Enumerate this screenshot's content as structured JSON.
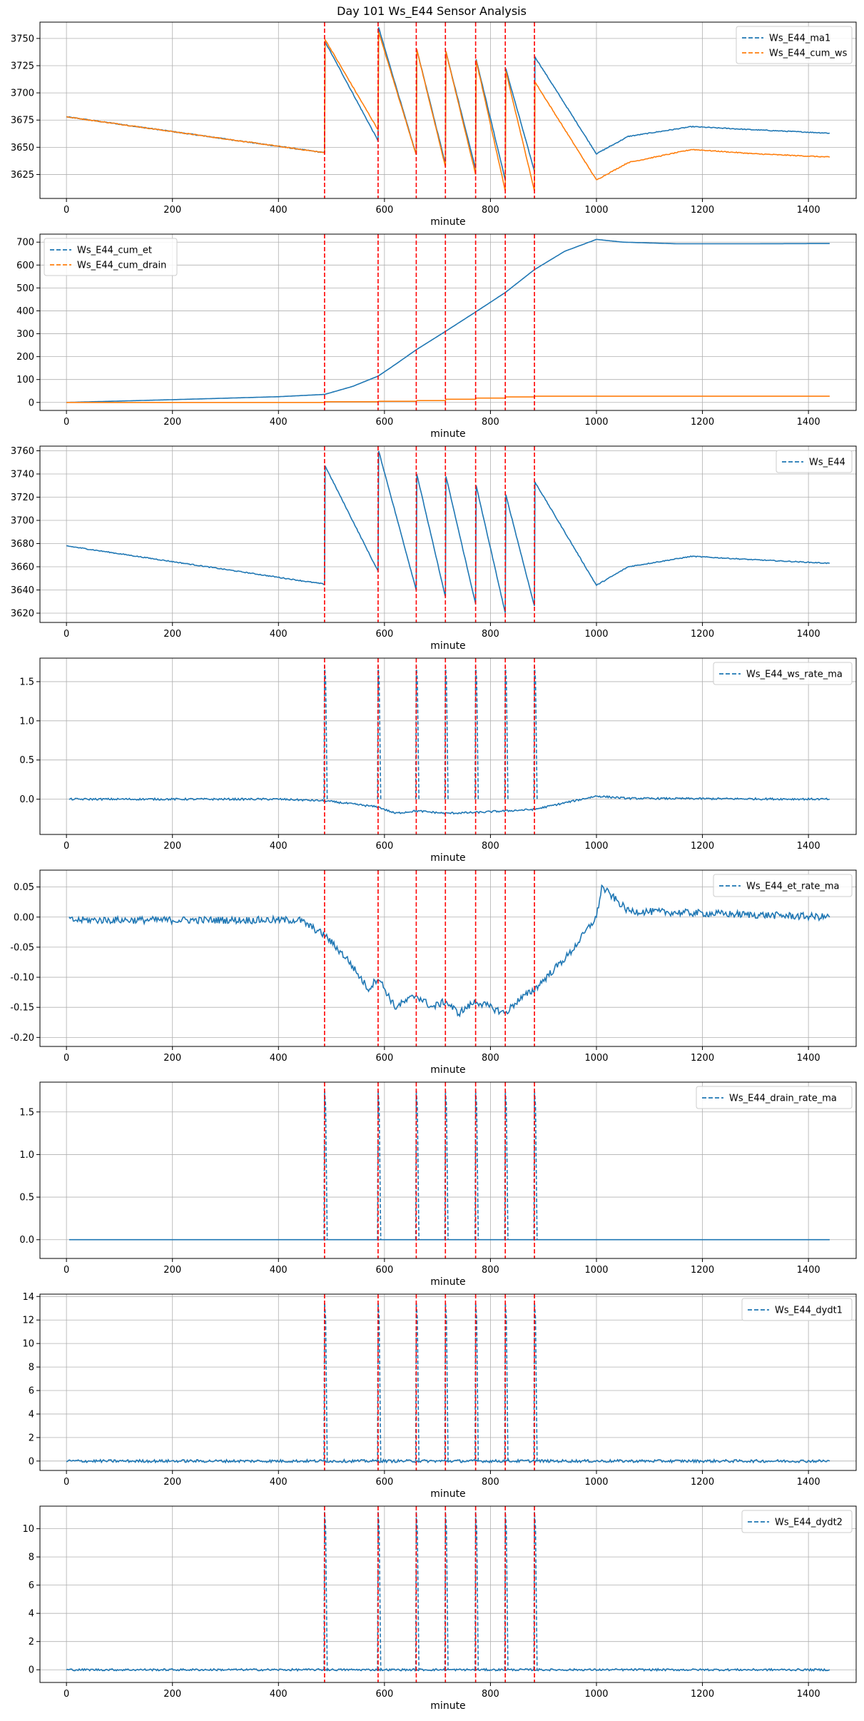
{
  "figure": {
    "title": "Day 101 Ws_E44 Sensor Analysis"
  },
  "colors": {
    "blue": "#1f77b4",
    "orange": "#ff7f0e",
    "event": "#ff0000",
    "grid": "#b0b0b0"
  },
  "chart_data": [
    {
      "type": "line",
      "xlabel": "minute",
      "xlim": [
        -50,
        1490
      ],
      "xticks": [
        0,
        200,
        400,
        600,
        800,
        1000,
        1200,
        1400
      ],
      "ylim": [
        3603,
        3765
      ],
      "yticks": [
        3625,
        3650,
        3675,
        3700,
        3725,
        3750
      ],
      "legend": "top-right",
      "events": [
        487,
        588,
        660,
        715,
        772,
        828,
        883
      ],
      "series": [
        {
          "name": "Ws_E44_ma1",
          "color": "#1f77b4",
          "style": "dashed",
          "noise": 0.4,
          "points": [
            [
              0,
              3678
            ],
            [
              487,
              3645
            ],
            [
              488,
              3747
            ],
            [
              588,
              3656
            ],
            [
              589,
              3760
            ],
            [
              660,
              3643
            ],
            [
              661,
              3740
            ],
            [
              715,
              3635
            ],
            [
              716,
              3738
            ],
            [
              772,
              3630
            ],
            [
              773,
              3731
            ],
            [
              828,
              3620
            ],
            [
              829,
              3722
            ],
            [
              883,
              3628
            ],
            [
              884,
              3733
            ],
            [
              1000,
              3644
            ],
            [
              1060,
              3660
            ],
            [
              1180,
              3669
            ],
            [
              1300,
              3666
            ],
            [
              1440,
              3663
            ]
          ]
        },
        {
          "name": "Ws_E44_cum_ws",
          "color": "#ff7f0e",
          "style": "dashed",
          "noise": 0.4,
          "points": [
            [
              0,
              3678
            ],
            [
              487,
              3645
            ],
            [
              488,
              3749
            ],
            [
              588,
              3666
            ],
            [
              589,
              3756
            ],
            [
              660,
              3643
            ],
            [
              661,
              3740
            ],
            [
              715,
              3632
            ],
            [
              716,
              3738
            ],
            [
              772,
              3625
            ],
            [
              773,
              3730
            ],
            [
              828,
              3610
            ],
            [
              829,
              3720
            ],
            [
              883,
              3610
            ],
            [
              884,
              3710
            ],
            [
              1000,
              3620
            ],
            [
              1060,
              3636
            ],
            [
              1180,
              3648
            ],
            [
              1300,
              3644
            ],
            [
              1440,
              3641
            ]
          ]
        }
      ]
    },
    {
      "type": "line",
      "xlabel": "minute",
      "xlim": [
        -50,
        1490
      ],
      "xticks": [
        0,
        200,
        400,
        600,
        800,
        1000,
        1200,
        1400
      ],
      "ylim": [
        -35,
        735
      ],
      "yticks": [
        0,
        100,
        200,
        300,
        400,
        500,
        600,
        700
      ],
      "legend": "top-left",
      "events": [
        487,
        588,
        660,
        715,
        772,
        828,
        883
      ],
      "series": [
        {
          "name": "Ws_E44_cum_et",
          "color": "#1f77b4",
          "style": "dashed",
          "noise": 0,
          "points": [
            [
              0,
              0
            ],
            [
              200,
              12
            ],
            [
              400,
              25
            ],
            [
              487,
              35
            ],
            [
              540,
              70
            ],
            [
              588,
              115
            ],
            [
              620,
              165
            ],
            [
              660,
              230
            ],
            [
              715,
              310
            ],
            [
              772,
              395
            ],
            [
              828,
              480
            ],
            [
              883,
              580
            ],
            [
              940,
              660
            ],
            [
              1000,
              712
            ],
            [
              1050,
              700
            ],
            [
              1150,
              693
            ],
            [
              1300,
              693
            ],
            [
              1440,
              694
            ]
          ]
        },
        {
          "name": "Ws_E44_cum_drain",
          "color": "#ff7f0e",
          "style": "dashed",
          "noise": 0,
          "points": [
            [
              0,
              0
            ],
            [
              487,
              0
            ],
            [
              488,
              3
            ],
            [
              588,
              3
            ],
            [
              589,
              5
            ],
            [
              660,
              5
            ],
            [
              661,
              8
            ],
            [
              715,
              8
            ],
            [
              716,
              14
            ],
            [
              772,
              14
            ],
            [
              773,
              19
            ],
            [
              828,
              19
            ],
            [
              829,
              24
            ],
            [
              883,
              24
            ],
            [
              884,
              27
            ],
            [
              1440,
              27
            ]
          ]
        }
      ]
    },
    {
      "type": "line",
      "xlabel": "minute",
      "xlim": [
        -50,
        1490
      ],
      "xticks": [
        0,
        200,
        400,
        600,
        800,
        1000,
        1200,
        1400
      ],
      "ylim": [
        3612,
        3764
      ],
      "yticks": [
        3620,
        3640,
        3660,
        3680,
        3700,
        3720,
        3740,
        3760
      ],
      "legend": "top-right",
      "events": [
        487,
        588,
        660,
        715,
        772,
        828,
        883
      ],
      "series": [
        {
          "name": "Ws_E44",
          "color": "#1f77b4",
          "style": "dashed",
          "noise": 0.4,
          "points": [
            [
              0,
              3678
            ],
            [
              487,
              3645
            ],
            [
              488,
              3747
            ],
            [
              588,
              3656
            ],
            [
              589,
              3760
            ],
            [
              660,
              3640
            ],
            [
              661,
              3740
            ],
            [
              715,
              3634
            ],
            [
              716,
              3738
            ],
            [
              772,
              3628
            ],
            [
              773,
              3730
            ],
            [
              828,
              3620
            ],
            [
              829,
              3722
            ],
            [
              883,
              3626
            ],
            [
              884,
              3733
            ],
            [
              1000,
              3644
            ],
            [
              1060,
              3660
            ],
            [
              1180,
              3669
            ],
            [
              1300,
              3666
            ],
            [
              1440,
              3663
            ]
          ]
        }
      ]
    },
    {
      "type": "line",
      "xlabel": "minute",
      "xlim": [
        -50,
        1490
      ],
      "xticks": [
        0,
        200,
        400,
        600,
        800,
        1000,
        1200,
        1400
      ],
      "ylim": [
        -0.45,
        1.8
      ],
      "yticks": [
        0.0,
        0.5,
        1.0,
        1.5
      ],
      "legend": "top-right",
      "events": [
        487,
        588,
        660,
        715,
        772,
        828,
        883
      ],
      "series": [
        {
          "name": "Ws_E44_ws_rate_ma",
          "color": "#1f77b4",
          "style": "dashed",
          "noise": 0.012,
          "spike": 1.7,
          "points": [
            [
              5,
              0
            ],
            [
              400,
              0
            ],
            [
              487,
              -0.02
            ],
            [
              588,
              -0.1
            ],
            [
              620,
              -0.18
            ],
            [
              660,
              -0.15
            ],
            [
              715,
              -0.18
            ],
            [
              772,
              -0.17
            ],
            [
              828,
              -0.15
            ],
            [
              883,
              -0.13
            ],
            [
              1000,
              0.04
            ],
            [
              1060,
              0.01
            ],
            [
              1440,
              0.0
            ]
          ]
        }
      ]
    },
    {
      "type": "line",
      "xlabel": "minute",
      "xlim": [
        -50,
        1490
      ],
      "xticks": [
        0,
        200,
        400,
        600,
        800,
        1000,
        1200,
        1400
      ],
      "ylim": [
        -0.215,
        0.078
      ],
      "yticks": [
        -0.2,
        -0.15,
        -0.1,
        -0.05,
        0.0,
        0.05
      ],
      "legend": "top-right",
      "events": [
        487,
        588,
        660,
        715,
        772,
        828,
        883
      ],
      "series": [
        {
          "name": "Ws_E44_et_rate_ma",
          "color": "#1f77b4",
          "style": "dashed",
          "noise": 0.006,
          "points": [
            [
              5,
              -0.005
            ],
            [
              440,
              -0.005
            ],
            [
              487,
              -0.03
            ],
            [
              530,
              -0.07
            ],
            [
              570,
              -0.12
            ],
            [
              588,
              -0.1
            ],
            [
              620,
              -0.15
            ],
            [
              660,
              -0.13
            ],
            [
              690,
              -0.15
            ],
            [
              715,
              -0.14
            ],
            [
              740,
              -0.16
            ],
            [
              772,
              -0.14
            ],
            [
              800,
              -0.15
            ],
            [
              828,
              -0.16
            ],
            [
              850,
              -0.14
            ],
            [
              883,
              -0.12
            ],
            [
              950,
              -0.06
            ],
            [
              1000,
              0.0
            ],
            [
              1010,
              0.05
            ],
            [
              1060,
              0.01
            ],
            [
              1440,
              0.0
            ]
          ]
        }
      ]
    },
    {
      "type": "line",
      "xlabel": "minute",
      "xlim": [
        -50,
        1490
      ],
      "xticks": [
        0,
        200,
        400,
        600,
        800,
        1000,
        1200,
        1400
      ],
      "ylim": [
        -0.22,
        1.85
      ],
      "yticks": [
        0.0,
        0.5,
        1.0,
        1.5
      ],
      "legend": "top-right",
      "events": [
        487,
        588,
        660,
        715,
        772,
        828,
        883
      ],
      "series": [
        {
          "name": "Ws_E44_drain_rate_ma",
          "color": "#1f77b4",
          "style": "dashed",
          "noise": 0,
          "spike": 1.75,
          "points": [
            [
              5,
              0
            ],
            [
              1440,
              0
            ]
          ]
        }
      ]
    },
    {
      "type": "line",
      "xlabel": "minute",
      "xlim": [
        -50,
        1490
      ],
      "xticks": [
        0,
        200,
        400,
        600,
        800,
        1000,
        1200,
        1400
      ],
      "ylim": [
        -0.8,
        14.2
      ],
      "yticks": [
        0,
        2,
        4,
        6,
        8,
        10,
        12,
        14
      ],
      "legend": "top-right",
      "events": [
        487,
        588,
        660,
        715,
        772,
        828,
        883
      ],
      "series": [
        {
          "name": "Ws_E44_dydt1",
          "color": "#1f77b4",
          "style": "dashed",
          "noise": 0.12,
          "spike": 13.5,
          "points": [
            [
              0,
              0
            ],
            [
              1440,
              0
            ]
          ]
        }
      ]
    },
    {
      "type": "line",
      "xlabel": "minute",
      "xlim": [
        -50,
        1490
      ],
      "xticks": [
        0,
        200,
        400,
        600,
        800,
        1000,
        1200,
        1400
      ],
      "ylim": [
        -0.9,
        11.6
      ],
      "yticks": [
        0,
        2,
        4,
        6,
        8,
        10
      ],
      "legend": "top-right",
      "events": [
        487,
        588,
        660,
        715,
        772,
        828,
        883
      ],
      "series": [
        {
          "name": "Ws_E44_dydt2",
          "color": "#1f77b4",
          "style": "dashed",
          "noise": 0.07,
          "spike": 11.2,
          "points": [
            [
              0,
              0
            ],
            [
              1440,
              0
            ]
          ]
        }
      ]
    }
  ]
}
